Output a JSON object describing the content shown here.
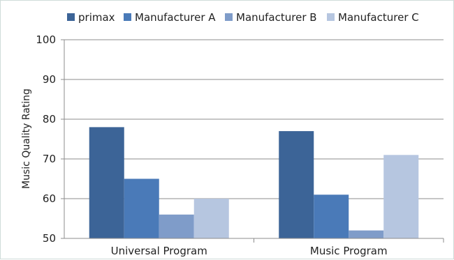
{
  "chart_data": {
    "type": "bar",
    "categories": [
      "Universal Program",
      "Music Program"
    ],
    "series": [
      {
        "name": "primax",
        "values": [
          78,
          77
        ],
        "color": "#3c6497"
      },
      {
        "name": "Manufacturer A",
        "values": [
          65,
          61
        ],
        "color": "#4a7ab8"
      },
      {
        "name": "Manufacturer B",
        "values": [
          56,
          52
        ],
        "color": "#7f9cc9"
      },
      {
        "name": "Manufacturer C",
        "values": [
          60,
          71
        ],
        "color": "#b6c6e0"
      }
    ],
    "title": "",
    "xlabel": "",
    "ylabel": "Music Quality Rating",
    "ylim": [
      50,
      100
    ],
    "yticks": [
      50,
      60,
      70,
      80,
      90,
      100
    ],
    "grid": true,
    "legend": "top"
  }
}
